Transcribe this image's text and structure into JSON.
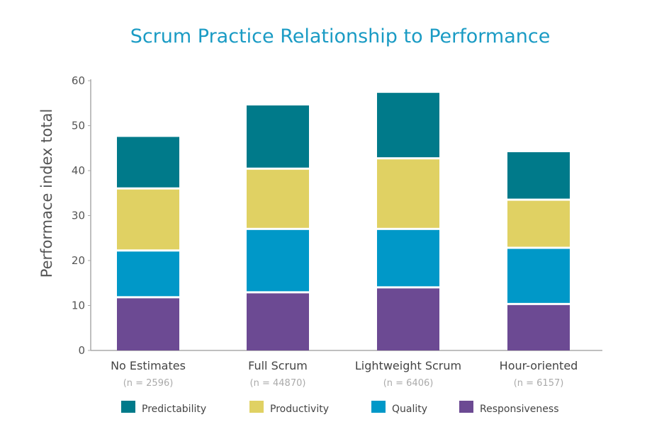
{
  "chart_data": {
    "type": "bar",
    "stacked": true,
    "title": "Scrum Practice Relationship to Performance",
    "xlabel": "",
    "ylabel": "Performace index total",
    "ylim": [
      0,
      60
    ],
    "yticks": [
      0,
      10,
      20,
      30,
      40,
      50,
      60
    ],
    "grid": false,
    "legend_position": "bottom",
    "categories": [
      "No Estimates",
      "Full Scrum",
      "Lightweight Scrum",
      "Hour-oriented"
    ],
    "category_notes": [
      "(n = 2596)",
      "(n = 44870)",
      "(n = 6406)",
      "(n = 6157)"
    ],
    "series": [
      {
        "name": "Responsiveness",
        "color": "#6c4a93",
        "values": [
          11.6,
          12.7,
          13.8,
          10.1
        ]
      },
      {
        "name": "Quality",
        "color": "#0098c8",
        "values": [
          10.4,
          14.1,
          13.0,
          12.5
        ]
      },
      {
        "name": "Productivity",
        "color": "#e0d163",
        "values": [
          13.8,
          13.4,
          15.7,
          10.7
        ]
      },
      {
        "name": "Predictability",
        "color": "#007a8a",
        "values": [
          11.7,
          14.3,
          14.8,
          10.8
        ]
      }
    ],
    "legend_order": [
      "Predictability",
      "Productivity",
      "Quality",
      "Responsiveness"
    ]
  }
}
